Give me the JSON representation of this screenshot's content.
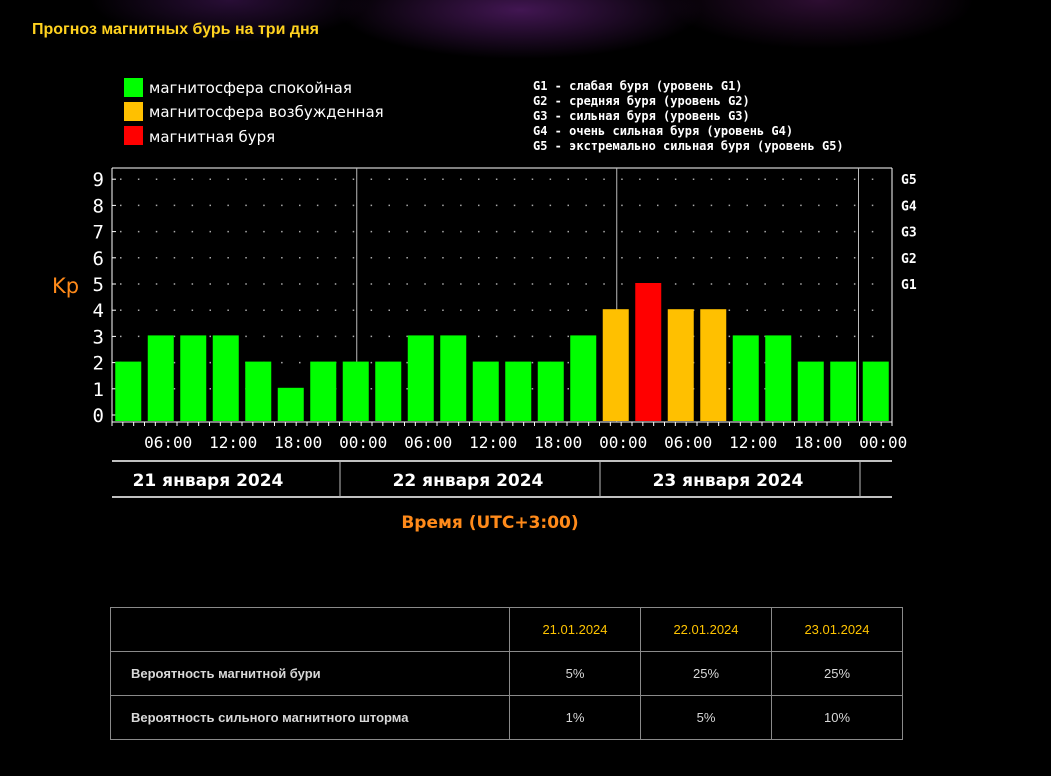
{
  "page": {
    "title": "Прогноз магнитных бурь на три дня"
  },
  "colors": {
    "quiet": "#00ff00",
    "disturbed": "#ffc000",
    "storm": "#ff0000",
    "accent": "#ff8a1a",
    "header": "#ffc400"
  },
  "legend": {
    "quiet": "магнитосфера спокойная",
    "disturbed": "магнитосфера возбужденная",
    "storm": "магнитная буря"
  },
  "glevels": [
    "G1 - слабая буря (уровень G1)",
    "G2 - средняя буря (уровень G2)",
    "G3 - сильная буря (уровень G3)",
    "G4 - очень сильная буря (уровень G4)",
    "G5 - экстремально сильная буря (уровень G5)"
  ],
  "chart_data": {
    "type": "bar",
    "ylabel": "Kp",
    "xlabel": "Время (UTC+3:00)",
    "ylim": [
      0,
      9
    ],
    "yticks": [
      "0",
      "1",
      "2",
      "3",
      "4",
      "5",
      "6",
      "7",
      "8",
      "9"
    ],
    "gticks": [
      {
        "label": "G1",
        "kp": 5
      },
      {
        "label": "G2",
        "kp": 6
      },
      {
        "label": "G3",
        "kp": 7
      },
      {
        "label": "G4",
        "kp": 8
      },
      {
        "label": "G5",
        "kp": 9
      }
    ],
    "time_labels": [
      "06:00",
      "12:00",
      "18:00",
      "00:00",
      "06:00",
      "12:00",
      "18:00",
      "00:00",
      "06:00",
      "12:00",
      "18:00",
      "00:00"
    ],
    "days": [
      "21 января 2024",
      "22 января 2024",
      "23 января 2024"
    ],
    "values": [
      2,
      3,
      3,
      3,
      2,
      1,
      2,
      2,
      2,
      3,
      3,
      2,
      2,
      2,
      3,
      4,
      5,
      4,
      4,
      3,
      3,
      2,
      2,
      2
    ],
    "levels": [
      "quiet",
      "quiet",
      "quiet",
      "quiet",
      "quiet",
      "quiet",
      "quiet",
      "quiet",
      "quiet",
      "quiet",
      "quiet",
      "quiet",
      "quiet",
      "quiet",
      "quiet",
      "disturbed",
      "storm",
      "disturbed",
      "disturbed",
      "quiet",
      "quiet",
      "quiet",
      "quiet",
      "quiet"
    ],
    "grid": true
  },
  "table": {
    "headers": [
      "21.01.2024",
      "22.01.2024",
      "23.01.2024"
    ],
    "rows": [
      {
        "label": "Вероятность магнитной бури",
        "values": [
          "5%",
          "25%",
          "25%"
        ]
      },
      {
        "label": "Вероятность сильного магнитного шторма",
        "values": [
          "1%",
          "5%",
          "10%"
        ]
      }
    ]
  }
}
